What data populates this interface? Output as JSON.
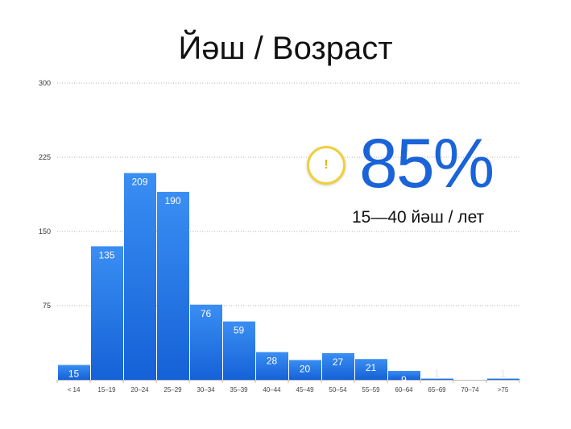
{
  "title": "Йәш / Возраст",
  "highlight": {
    "icon": "exclamation-icon",
    "icon_glyph": "!",
    "percent": "85%",
    "range_label": "15—40 йәш / лет"
  },
  "colors": {
    "bar_top": "#3a8ef3",
    "bar_bottom": "#1561d7",
    "accent": "#1a63d8",
    "badge_border": "#f0cf3a"
  },
  "chart_data": {
    "type": "bar",
    "title": "Йәш / Возраст",
    "xlabel": "",
    "ylabel": "",
    "ylim": [
      0,
      300
    ],
    "yticks": [
      75,
      150,
      225,
      300
    ],
    "grid": true,
    "categories": [
      "< 14",
      "15–19",
      "20–24",
      "25–29",
      "30–34",
      "35–39",
      "40–44",
      "45–49",
      "50–54",
      "55–59",
      "60–64",
      "65–69",
      "70–74",
      ">75"
    ],
    "values": [
      15,
      135,
      209,
      190,
      76,
      59,
      28,
      20,
      27,
      21,
      9,
      1,
      0,
      1
    ],
    "labels": [
      "15",
      "135",
      "209",
      "190",
      "76",
      "59",
      "28",
      "20",
      "27",
      "21",
      "9",
      "1",
      "",
      "1"
    ]
  }
}
